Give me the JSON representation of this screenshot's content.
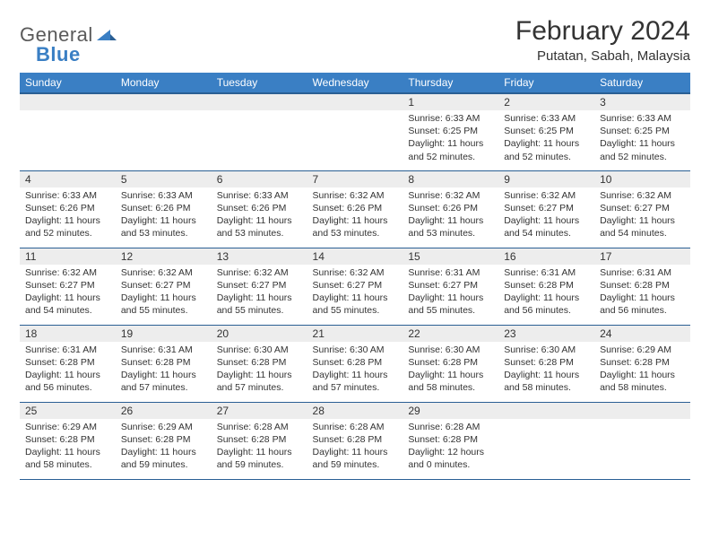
{
  "logo": {
    "text1": "General",
    "text2": "Blue"
  },
  "title": "February 2024",
  "location": "Putatan, Sabah, Malaysia",
  "colors": {
    "header_bg": "#3a7fc4",
    "header_border": "#2a5f94",
    "daynum_bg": "#ededed",
    "text": "#333333",
    "logo_gray": "#5a5a5a",
    "logo_blue": "#3a7fc4",
    "page_bg": "#ffffff"
  },
  "weekdays": [
    "Sunday",
    "Monday",
    "Tuesday",
    "Wednesday",
    "Thursday",
    "Friday",
    "Saturday"
  ],
  "weeks": [
    [
      null,
      null,
      null,
      null,
      {
        "day": "1",
        "sunrise": "6:33 AM",
        "sunset": "6:25 PM",
        "daylight": "11 hours and 52 minutes."
      },
      {
        "day": "2",
        "sunrise": "6:33 AM",
        "sunset": "6:25 PM",
        "daylight": "11 hours and 52 minutes."
      },
      {
        "day": "3",
        "sunrise": "6:33 AM",
        "sunset": "6:25 PM",
        "daylight": "11 hours and 52 minutes."
      }
    ],
    [
      {
        "day": "4",
        "sunrise": "6:33 AM",
        "sunset": "6:26 PM",
        "daylight": "11 hours and 52 minutes."
      },
      {
        "day": "5",
        "sunrise": "6:33 AM",
        "sunset": "6:26 PM",
        "daylight": "11 hours and 53 minutes."
      },
      {
        "day": "6",
        "sunrise": "6:33 AM",
        "sunset": "6:26 PM",
        "daylight": "11 hours and 53 minutes."
      },
      {
        "day": "7",
        "sunrise": "6:32 AM",
        "sunset": "6:26 PM",
        "daylight": "11 hours and 53 minutes."
      },
      {
        "day": "8",
        "sunrise": "6:32 AM",
        "sunset": "6:26 PM",
        "daylight": "11 hours and 53 minutes."
      },
      {
        "day": "9",
        "sunrise": "6:32 AM",
        "sunset": "6:27 PM",
        "daylight": "11 hours and 54 minutes."
      },
      {
        "day": "10",
        "sunrise": "6:32 AM",
        "sunset": "6:27 PM",
        "daylight": "11 hours and 54 minutes."
      }
    ],
    [
      {
        "day": "11",
        "sunrise": "6:32 AM",
        "sunset": "6:27 PM",
        "daylight": "11 hours and 54 minutes."
      },
      {
        "day": "12",
        "sunrise": "6:32 AM",
        "sunset": "6:27 PM",
        "daylight": "11 hours and 55 minutes."
      },
      {
        "day": "13",
        "sunrise": "6:32 AM",
        "sunset": "6:27 PM",
        "daylight": "11 hours and 55 minutes."
      },
      {
        "day": "14",
        "sunrise": "6:32 AM",
        "sunset": "6:27 PM",
        "daylight": "11 hours and 55 minutes."
      },
      {
        "day": "15",
        "sunrise": "6:31 AM",
        "sunset": "6:27 PM",
        "daylight": "11 hours and 55 minutes."
      },
      {
        "day": "16",
        "sunrise": "6:31 AM",
        "sunset": "6:28 PM",
        "daylight": "11 hours and 56 minutes."
      },
      {
        "day": "17",
        "sunrise": "6:31 AM",
        "sunset": "6:28 PM",
        "daylight": "11 hours and 56 minutes."
      }
    ],
    [
      {
        "day": "18",
        "sunrise": "6:31 AM",
        "sunset": "6:28 PM",
        "daylight": "11 hours and 56 minutes."
      },
      {
        "day": "19",
        "sunrise": "6:31 AM",
        "sunset": "6:28 PM",
        "daylight": "11 hours and 57 minutes."
      },
      {
        "day": "20",
        "sunrise": "6:30 AM",
        "sunset": "6:28 PM",
        "daylight": "11 hours and 57 minutes."
      },
      {
        "day": "21",
        "sunrise": "6:30 AM",
        "sunset": "6:28 PM",
        "daylight": "11 hours and 57 minutes."
      },
      {
        "day": "22",
        "sunrise": "6:30 AM",
        "sunset": "6:28 PM",
        "daylight": "11 hours and 58 minutes."
      },
      {
        "day": "23",
        "sunrise": "6:30 AM",
        "sunset": "6:28 PM",
        "daylight": "11 hours and 58 minutes."
      },
      {
        "day": "24",
        "sunrise": "6:29 AM",
        "sunset": "6:28 PM",
        "daylight": "11 hours and 58 minutes."
      }
    ],
    [
      {
        "day": "25",
        "sunrise": "6:29 AM",
        "sunset": "6:28 PM",
        "daylight": "11 hours and 58 minutes."
      },
      {
        "day": "26",
        "sunrise": "6:29 AM",
        "sunset": "6:28 PM",
        "daylight": "11 hours and 59 minutes."
      },
      {
        "day": "27",
        "sunrise": "6:28 AM",
        "sunset": "6:28 PM",
        "daylight": "11 hours and 59 minutes."
      },
      {
        "day": "28",
        "sunrise": "6:28 AM",
        "sunset": "6:28 PM",
        "daylight": "11 hours and 59 minutes."
      },
      {
        "day": "29",
        "sunrise": "6:28 AM",
        "sunset": "6:28 PM",
        "daylight": "12 hours and 0 minutes."
      },
      null,
      null
    ]
  ],
  "labels": {
    "sunrise": "Sunrise:",
    "sunset": "Sunset:",
    "daylight": "Daylight:"
  }
}
